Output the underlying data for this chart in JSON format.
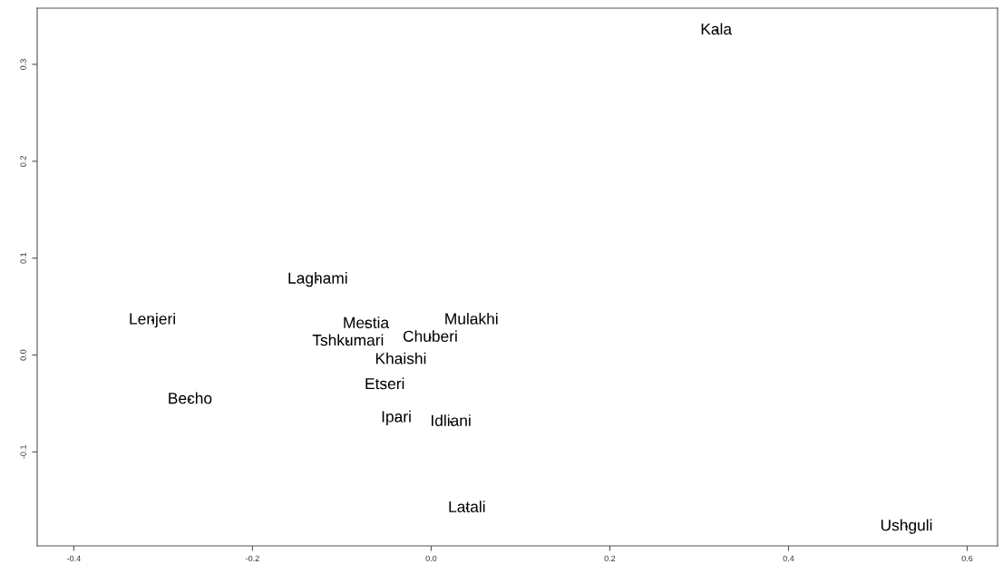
{
  "chart_data": {
    "type": "scatter",
    "grid": false,
    "legend": false,
    "xlim": [
      -0.441,
      0.634
    ],
    "ylim": [
      -0.197,
      0.358
    ],
    "xticks": [
      -0.4,
      -0.2,
      {
        "value": 0.0,
        "label": "0.0"
      },
      0.2,
      0.4,
      0.6
    ],
    "yticks": [
      -0.1,
      {
        "value": 0.0,
        "label": "0.0"
      },
      0.1,
      0.2,
      0.3
    ],
    "series": [
      {
        "color": "#000000",
        "x": [
          0.319,
          -0.127,
          -0.312,
          -0.073,
          0.045,
          -0.093,
          -0.001,
          -0.034,
          -0.052,
          -0.27,
          -0.039,
          0.022,
          0.04,
          0.532
        ],
        "values": [
          0.335,
          0.078,
          0.036,
          0.032,
          0.036,
          0.014,
          0.018,
          -0.005,
          -0.031,
          -0.046,
          -0.065,
          -0.069,
          -0.158,
          -0.177
        ],
        "value_labels": [
          "Kala",
          "Laghami",
          "Lenjeri",
          "Mestia",
          "Mulakhi",
          "Tshkumari",
          "Chuberi",
          "Khaishi",
          "Etseri",
          "Becho",
          "Ipari",
          "Idliani",
          "Latali",
          "Ushguli"
        ]
      }
    ]
  }
}
